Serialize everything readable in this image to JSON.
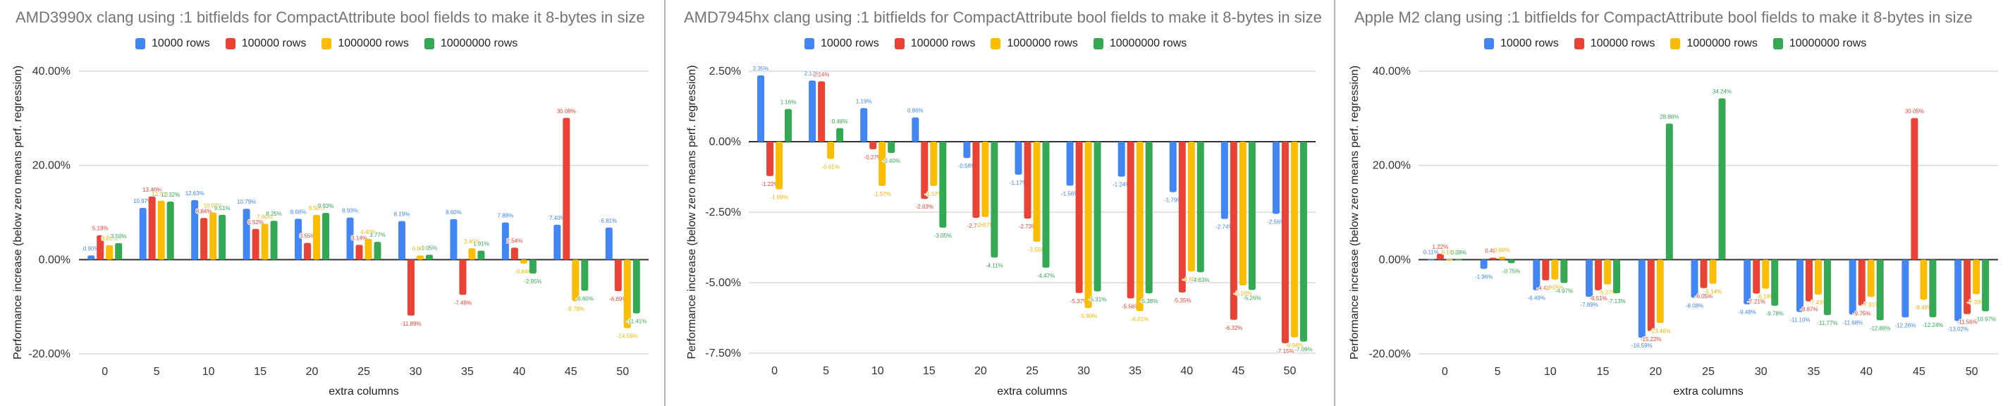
{
  "legend": {
    "series_names": [
      "10000 rows",
      "100000 rows",
      "1000000 rows",
      "10000000 rows"
    ],
    "colors": [
      "#4285f4",
      "#ea4335",
      "#fbbc04",
      "#34a853"
    ]
  },
  "chart_data": [
    {
      "type": "bar",
      "title": "AMD3990x clang using :1 bitfields for CompactAttribute bool fields to make it 8-bytes in size",
      "xlabel": "extra columns",
      "ylabel": "Performance increase (below zero means perf. regression)",
      "ylim": [
        -20,
        40
      ],
      "yticks": [
        40,
        20,
        0,
        -20
      ],
      "ytick_labels": [
        "40.00%",
        "20.00%",
        "0.00%",
        "-20.00%"
      ],
      "grid": true,
      "legend_position": "top",
      "categories": [
        "0",
        "5",
        "10",
        "15",
        "20",
        "25",
        "30",
        "35",
        "40",
        "45",
        "50"
      ],
      "series": [
        {
          "name": "10000 rows",
          "values": [
            0.9,
            10.97,
            12.63,
            10.79,
            8.68,
            8.93,
            8.19,
            8.6,
            7.88,
            7.4,
            6.81
          ]
        },
        {
          "name": "100000 rows",
          "values": [
            5.18,
            13.4,
            8.84,
            6.52,
            3.55,
            3.14,
            -11.89,
            -7.49,
            2.54,
            30.08,
            -6.69
          ]
        },
        {
          "name": "1000000 rows",
          "values": [
            3.05,
            12.5,
            10.0,
            7.6,
            9.5,
            4.4,
            0.9,
            2.4,
            -0.84,
            -8.79,
            -14.56
          ]
        },
        {
          "name": "10000000 rows",
          "values": [
            3.5,
            12.32,
            9.51,
            8.25,
            9.93,
            3.77,
            1.05,
            1.91,
            -2.95,
            -6.6,
            -11.41
          ]
        }
      ]
    },
    {
      "type": "bar",
      "title": "AMD7945hx clang using :1 bitfields for CompactAttribute bool fields to make it 8-bytes in size",
      "xlabel": "extra columns",
      "ylabel": "Performance increase (below zero means perf. regression)",
      "ylim": [
        -7.5,
        2.5
      ],
      "yticks": [
        2.5,
        0,
        -2.5,
        -5,
        -7.5
      ],
      "ytick_labels": [
        "2.50%",
        "0.00%",
        "-2.50%",
        "-5.00%",
        "-7.50%"
      ],
      "grid": true,
      "legend_position": "top",
      "categories": [
        "0",
        "5",
        "10",
        "15",
        "20",
        "25",
        "30",
        "35",
        "40",
        "45",
        "50"
      ],
      "series": [
        {
          "name": "10000 rows",
          "values": [
            2.35,
            2.17,
            1.19,
            0.86,
            -0.58,
            -1.17,
            -1.56,
            -1.24,
            -1.79,
            -2.74,
            -2.56
          ]
        },
        {
          "name": "100000 rows",
          "values": [
            -1.22,
            2.14,
            -0.27,
            -2.03,
            -2.7,
            -2.73,
            -5.37,
            -5.56,
            -5.35,
            -6.32,
            -7.15
          ]
        },
        {
          "name": "1000000 rows",
          "values": [
            -1.69,
            -0.61,
            -1.57,
            -1.57,
            -2.67,
            -3.55,
            -5.9,
            -6.01,
            -4.6,
            -5.1,
            -6.94
          ]
        },
        {
          "name": "10000000 rows",
          "values": [
            1.16,
            0.48,
            -0.4,
            -3.05,
            -4.11,
            -4.47,
            -5.31,
            -5.38,
            -4.63,
            -5.26,
            -7.09
          ]
        }
      ]
    },
    {
      "type": "bar",
      "title": "Apple M2 clang using :1 bitfields for CompactAttribute bool fields to make it 8-bytes in size",
      "xlabel": "extra columns",
      "ylabel": "Performance increase (below zero means perf. regression)",
      "ylim": [
        -20,
        40
      ],
      "yticks": [
        40,
        20,
        0,
        -20
      ],
      "ytick_labels": [
        "40.00%",
        "20.00%",
        "0.00%",
        "-20.00%"
      ],
      "grid": true,
      "legend_position": "top",
      "categories": [
        "0",
        "5",
        "10",
        "15",
        "20",
        "25",
        "30",
        "35",
        "40",
        "45",
        "50"
      ],
      "series": [
        {
          "name": "10000 rows",
          "values": [
            0.11,
            -1.96,
            -6.49,
            -7.89,
            -16.59,
            -8.08,
            -9.48,
            -11.1,
            -11.68,
            -12.26,
            -13.02
          ]
        },
        {
          "name": "100000 rows",
          "values": [
            1.22,
            0.4,
            -4.4,
            -6.51,
            -15.22,
            -6.05,
            -7.21,
            -8.87,
            -9.75,
            30.05,
            -11.56
          ]
        },
        {
          "name": "1000000 rows",
          "values": [
            0.1,
            0.6,
            -4.25,
            -5.27,
            -13.46,
            -5.14,
            -6.18,
            -7.43,
            -7.91,
            -8.49,
            -7.33
          ]
        },
        {
          "name": "10000000 rows",
          "values": [
            0.08,
            -0.75,
            -4.97,
            -7.13,
            28.88,
            34.24,
            -9.78,
            -11.77,
            -12.88,
            -12.24,
            -10.97
          ]
        }
      ]
    }
  ]
}
